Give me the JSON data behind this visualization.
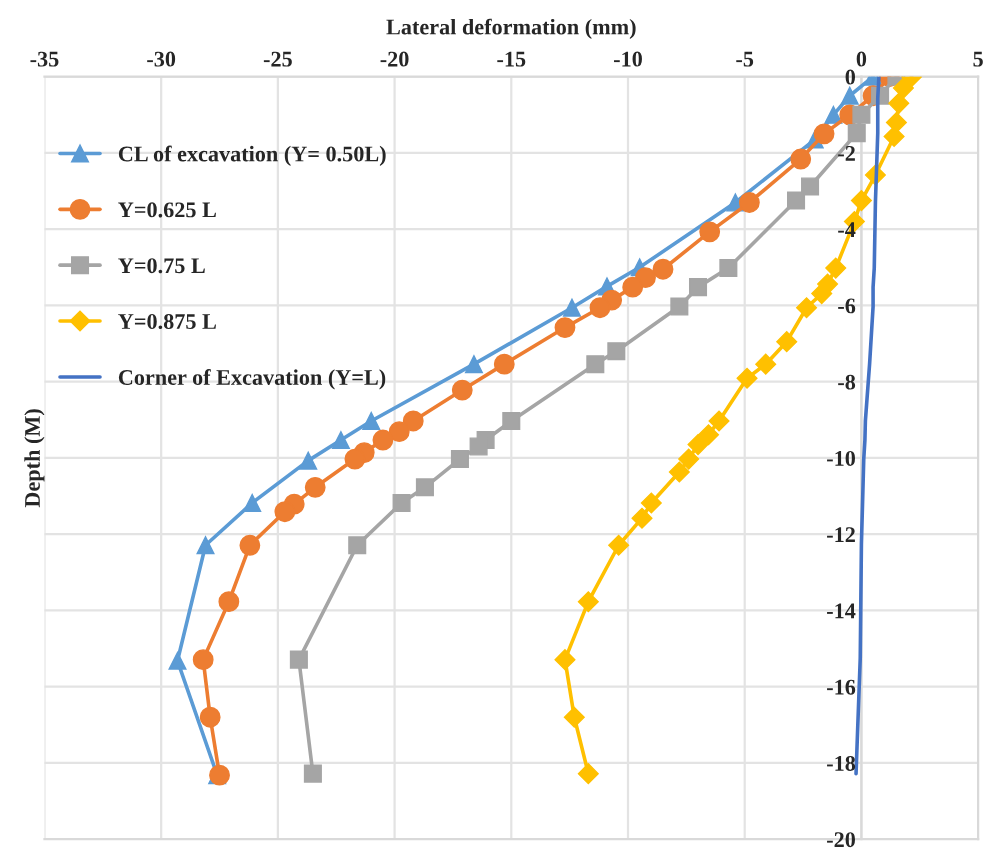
{
  "chart_data": {
    "type": "line",
    "xlabel": "Lateral deformation (mm)",
    "ylabel": "Depth (M)",
    "xlim": [
      -35,
      5
    ],
    "xticks": [
      -35,
      -30,
      -25,
      -20,
      -15,
      -10,
      -5,
      0,
      5
    ],
    "ylim": [
      -20,
      0
    ],
    "yticks": [
      -20,
      -18,
      -16,
      -14,
      -12,
      -10,
      -8,
      -6,
      -4,
      -2,
      0
    ],
    "grid": true,
    "legend": "top left",
    "series": [
      {
        "name": "CL of excavation (Y= 0.50L)",
        "color": "#5b9bd5",
        "marker": "triangle",
        "x": [
          0.5,
          -0.5,
          -1.2,
          -2.0,
          -5.4,
          -9.5,
          -10.9,
          -12.4,
          -16.6,
          -21.0,
          -22.3,
          -23.7,
          -26.1,
          -28.1,
          -29.3,
          -27.6
        ],
        "values": [
          0,
          -0.5,
          -1.0,
          -1.65,
          -3.3,
          -5.0,
          -5.5,
          -6.06,
          -7.54,
          -9.03,
          -9.53,
          -10.07,
          -11.18,
          -12.29,
          -15.32,
          -18.32
        ]
      },
      {
        "name": "Y=0.625 L",
        "color": "#ed7d31",
        "marker": "circle",
        "x": [
          1.2,
          0.5,
          -0.5,
          -1.6,
          -2.6,
          -4.8,
          -6.5,
          -8.5,
          -9.25,
          -9.8,
          -10.7,
          -11.2,
          -12.7,
          -15.3,
          -17.1,
          -19.2,
          -19.8,
          -20.5,
          -21.3,
          -21.7,
          -23.4,
          -24.3,
          -24.7,
          -26.2,
          -27.1,
          -28.2,
          -27.9,
          -27.5
        ],
        "values": [
          0,
          -0.5,
          -1.0,
          -1.5,
          -2.16,
          -3.3,
          -4.07,
          -5.05,
          -5.27,
          -5.52,
          -5.86,
          -6.06,
          -6.58,
          -7.54,
          -8.22,
          -9.03,
          -9.31,
          -9.53,
          -9.86,
          -10.03,
          -10.77,
          -11.21,
          -11.41,
          -12.29,
          -13.77,
          -15.29,
          -16.8,
          -18.32
        ]
      },
      {
        "name": "Y=0.75 L",
        "color": "#a5a5a5",
        "marker": "square",
        "x": [
          1.5,
          0.8,
          0,
          -0.2,
          -2.2,
          -2.8,
          -5.7,
          -7.0,
          -7.8,
          -10.5,
          -11.4,
          -15.0,
          -16.1,
          -16.4,
          -17.2,
          -18.7,
          -19.7,
          -21.6,
          -24.1,
          -23.5
        ],
        "values": [
          0,
          -0.5,
          -1.0,
          -1.48,
          -2.88,
          -3.25,
          -5.02,
          -5.52,
          -6.03,
          -7.2,
          -7.54,
          -9.03,
          -9.53,
          -9.7,
          -10.03,
          -10.77,
          -11.18,
          -12.29,
          -15.29,
          -18.28
        ]
      },
      {
        "name": "Y=0.875 L",
        "color": "#ffc000",
        "marker": "diamond",
        "x": [
          2.15,
          1.8,
          1.6,
          1.5,
          1.4,
          0.6,
          0,
          -0.3,
          -1.1,
          -1.45,
          -1.7,
          -2.35,
          -3.2,
          -4.1,
          -4.9,
          -6.1,
          -6.55,
          -7.0,
          -7.4,
          -7.8,
          -9.0,
          -9.4,
          -10.4,
          -11.7,
          -12.7,
          -12.3,
          -11.7
        ],
        "values": [
          0,
          -0.3,
          -0.7,
          -1.2,
          -1.57,
          -2.58,
          -3.25,
          -3.8,
          -5.02,
          -5.44,
          -5.69,
          -6.06,
          -6.95,
          -7.54,
          -7.91,
          -9.03,
          -9.39,
          -9.65,
          -10.03,
          -10.37,
          -11.18,
          -11.58,
          -12.29,
          -13.77,
          -15.29,
          -16.8,
          -18.28
        ]
      },
      {
        "name": "Corner of Excavation (Y=L)",
        "color": "#4472c4",
        "marker": "none",
        "x": [
          0.75,
          0.7,
          0.7,
          0.7,
          0.7,
          0.6,
          0.55,
          0.5,
          0.5,
          0.35,
          0.17,
          0.15,
          0.1,
          0.05,
          0,
          -0.05,
          -0.23
        ],
        "values": [
          0,
          -0.56,
          -0.9,
          -1.15,
          -1.48,
          -3.3,
          -5.02,
          -5.52,
          -6.03,
          -7.54,
          -9.03,
          -9.53,
          -10.03,
          -11.16,
          -12.26,
          -15.25,
          -18.28
        ]
      }
    ]
  }
}
